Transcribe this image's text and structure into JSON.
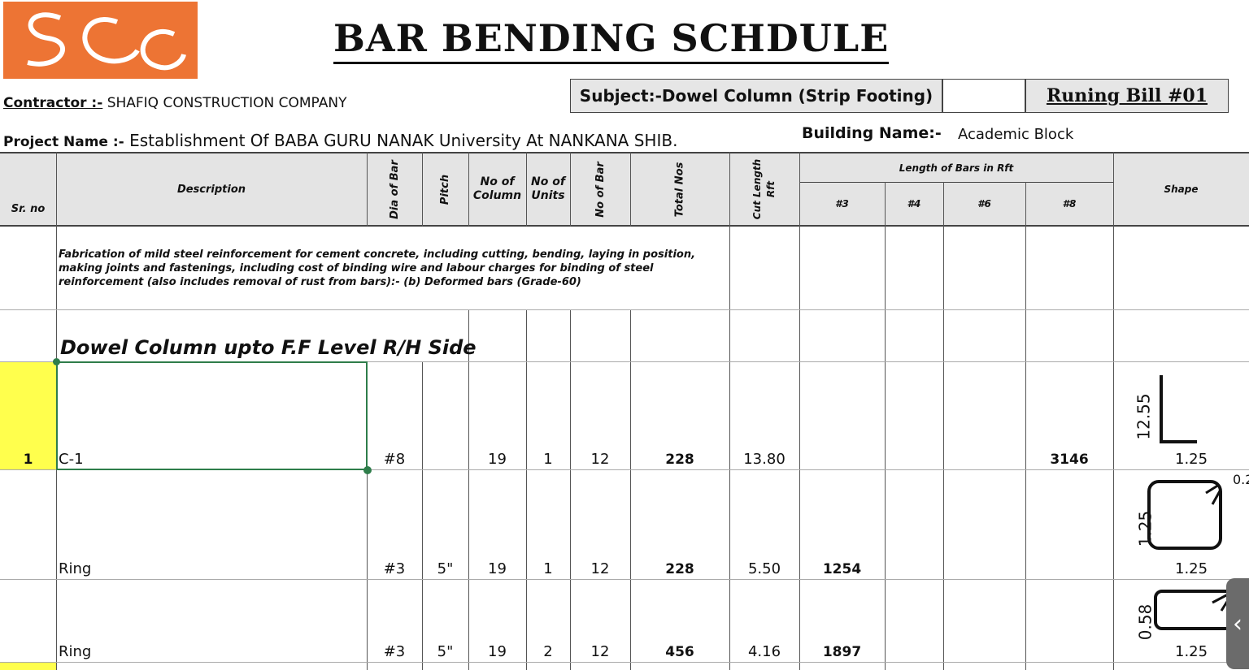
{
  "logo_text": "SCC",
  "title": "BAR BENDING SCHDULE",
  "contractor": {
    "label": "Contractor :-",
    "value": "SHAFIQ CONSTRUCTION COMPANY"
  },
  "subject": "Subject:-Dowel Column (Strip Footing)",
  "bill": "Runing Bill #01",
  "project": {
    "label": "Project Name :-",
    "value": "Establishment Of BABA GURU NANAK University At NANKANA SHIB."
  },
  "building": {
    "label": "Building Name:-",
    "value": "Academic Block"
  },
  "headers": {
    "sr": "Sr. no",
    "description": "Description",
    "dia": "Dia of Bar",
    "pitch": "Pitch",
    "no_column": "No of Column",
    "no_units": "No of Units",
    "no_bar": "No of Bar",
    "total": "Total Nos",
    "cut": "Cut Length Rft",
    "length_group": "Length of Bars in Rft",
    "l3": "#3",
    "l4": "#4",
    "l6": "#6",
    "l8": "#8",
    "shape": "Shape"
  },
  "item_description": "Fabrication of mild steel reinforcement for cement concrete, including cutting, bending, laying in position, making joints and fastenings, including cost of binding wire and labour charges for binding of steel reinforcement (also includes removal of rust from bars):- (b) Deformed bars (Grade-60)",
  "section": "Dowel Column upto F.F Level  R/H Side",
  "rows": [
    {
      "sr": "1",
      "desc": "C-1",
      "dia": "#8",
      "pitch": "",
      "cols": "19",
      "units": "1",
      "bars": "12",
      "total": "228",
      "cut": "13.80",
      "l3": "",
      "l8": "3146",
      "shape": {
        "type": "L",
        "v": "12.55",
        "h": "1.25"
      }
    },
    {
      "sr": "",
      "desc": "Ring",
      "dia": "#3",
      "pitch": "5\"",
      "cols": "19",
      "units": "1",
      "bars": "12",
      "total": "228",
      "cut": "5.50",
      "l3": "1254",
      "l8": "",
      "shape": {
        "type": "square",
        "v": "1.25",
        "h": "1.25",
        "hook": "0.2"
      }
    },
    {
      "sr": "",
      "desc": "Ring",
      "dia": "#3",
      "pitch": "5\"",
      "cols": "19",
      "units": "2",
      "bars": "12",
      "total": "456",
      "cut": "4.16",
      "l3": "1897",
      "l8": "",
      "shape": {
        "type": "rect",
        "v": "0.58",
        "h": "1.25"
      }
    }
  ],
  "colors": {
    "logo": "#ed7434",
    "header_bg": "#e4e4e4",
    "highlight": "#ffff4d",
    "selection": "#2e7d4a"
  }
}
